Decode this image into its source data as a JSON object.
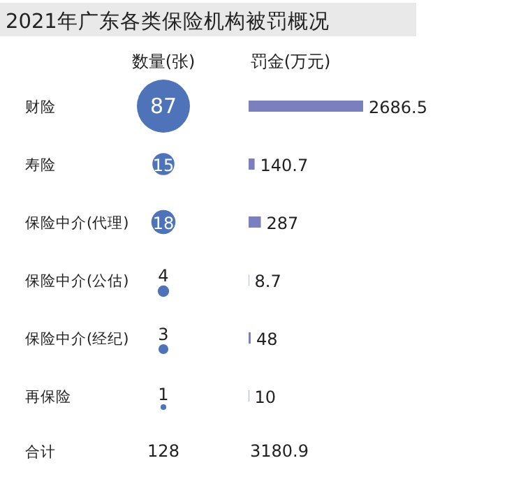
{
  "chart_data": [
    {
      "type": "other",
      "title": "2021年广东各类保险机构被罚概况",
      "subtitle": "数量(张)",
      "categories": [
        null,
        null,
        null,
        null,
        null,
        null
      ],
      "values": [
        87,
        15,
        18,
        4,
        3,
        1
      ],
      "color": "#4f73b8",
      "data_labels": true,
      "annotations": [
        "合计",
        "128"
      ]
    },
    {
      "type": "bar",
      "orientation": "horizontal",
      "subtitle": "罚金(万元)",
      "categories": [
        "财险",
        "寿险",
        "保险中介(代理)",
        "保险中介(公估)",
        "保险中介(经纪)",
        "再保险"
      ],
      "values": [
        2686.5,
        140.7,
        287,
        8.7,
        48,
        10
      ],
      "color": "#7b7fbe",
      "data_labels": true,
      "annotations": [
        "3180.9"
      ]
    }
  ]
}
